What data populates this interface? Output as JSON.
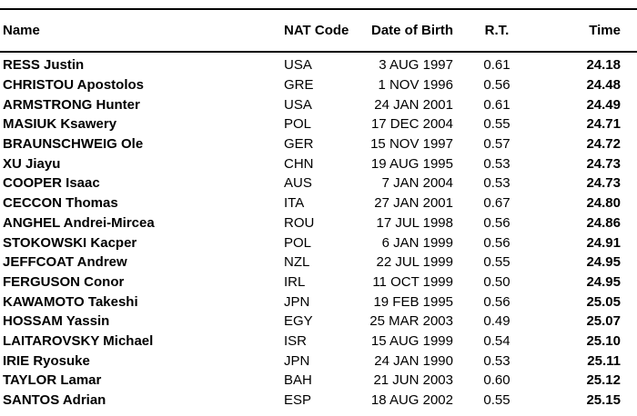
{
  "page": {
    "background": "#ffffff",
    "text_color": "#000000",
    "rule_color": "#000000"
  },
  "table": {
    "headers": {
      "name": "Name",
      "nat_code": "NAT Code",
      "date_of_birth": "Date of Birth",
      "reaction_time": "R.T.",
      "time": "Time"
    },
    "rows": [
      {
        "name": "RESS Justin",
        "nat": "USA",
        "dob": "3 AUG 1997",
        "rt": "0.61",
        "time": "24.18"
      },
      {
        "name": "CHRISTOU Apostolos",
        "nat": "GRE",
        "dob": "1 NOV 1996",
        "rt": "0.56",
        "time": "24.48"
      },
      {
        "name": "ARMSTRONG Hunter",
        "nat": "USA",
        "dob": "24 JAN 2001",
        "rt": "0.61",
        "time": "24.49"
      },
      {
        "name": "MASIUK Ksawery",
        "nat": "POL",
        "dob": "17 DEC 2004",
        "rt": "0.55",
        "time": "24.71"
      },
      {
        "name": "BRAUNSCHWEIG Ole",
        "nat": "GER",
        "dob": "15 NOV 1997",
        "rt": "0.57",
        "time": "24.72"
      },
      {
        "name": "XU Jiayu",
        "nat": "CHN",
        "dob": "19 AUG 1995",
        "rt": "0.53",
        "time": "24.73"
      },
      {
        "name": "COOPER Isaac",
        "nat": "AUS",
        "dob": "7 JAN 2004",
        "rt": "0.53",
        "time": "24.73"
      },
      {
        "name": "CECCON Thomas",
        "nat": "ITA",
        "dob": "27 JAN 2001",
        "rt": "0.67",
        "time": "24.80"
      },
      {
        "name": "ANGHEL Andrei-Mircea",
        "nat": "ROU",
        "dob": "17 JUL 1998",
        "rt": "0.56",
        "time": "24.86"
      },
      {
        "name": "STOKOWSKI Kacper",
        "nat": "POL",
        "dob": "6 JAN 1999",
        "rt": "0.56",
        "time": "24.91"
      },
      {
        "name": "JEFFCOAT Andrew",
        "nat": "NZL",
        "dob": "22 JUL 1999",
        "rt": "0.55",
        "time": "24.95"
      },
      {
        "name": "FERGUSON Conor",
        "nat": "IRL",
        "dob": "11 OCT 1999",
        "rt": "0.50",
        "time": "24.95"
      },
      {
        "name": "KAWAMOTO Takeshi",
        "nat": "JPN",
        "dob": "19 FEB 1995",
        "rt": "0.56",
        "time": "25.05"
      },
      {
        "name": "HOSSAM Yassin",
        "nat": "EGY",
        "dob": "25 MAR 2003",
        "rt": "0.49",
        "time": "25.07"
      },
      {
        "name": "LAITAROVSKY Michael",
        "nat": "ISR",
        "dob": "15 AUG 1999",
        "rt": "0.54",
        "time": "25.10"
      },
      {
        "name": "IRIE Ryosuke",
        "nat": "JPN",
        "dob": "24 JAN 1990",
        "rt": "0.53",
        "time": "25.11"
      },
      {
        "name": "TAYLOR Lamar",
        "nat": "BAH",
        "dob": "21 JUN 2003",
        "rt": "0.60",
        "time": "25.12"
      },
      {
        "name": "SANTOS Adrian",
        "nat": "ESP",
        "dob": "18 AUG 2002",
        "rt": "0.55",
        "time": "25.15"
      }
    ]
  }
}
